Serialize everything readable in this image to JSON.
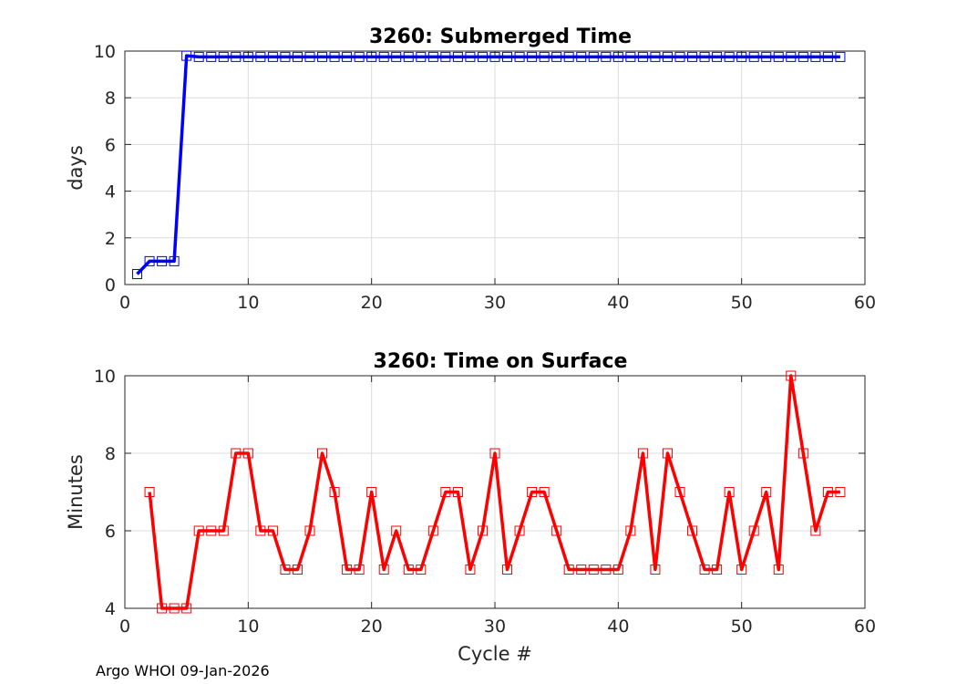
{
  "footer": "Argo WHOI 09-Jan-2026",
  "colors": {
    "top": "#0000ff",
    "bottom": "#ff0000"
  },
  "chart_data": [
    {
      "type": "line",
      "title": "3260: Submerged Time",
      "xlabel": "",
      "ylabel": "days",
      "xlim": [
        0,
        60
      ],
      "ylim": [
        0,
        10
      ],
      "xticks": [
        0,
        10,
        20,
        30,
        40,
        50,
        60
      ],
      "yticks": [
        0,
        2,
        4,
        6,
        8,
        10
      ],
      "grid": true,
      "marker": "square",
      "series": [
        {
          "name": "Submerged Time",
          "color": "#0000ff",
          "x": [
            1,
            2,
            3,
            4,
            5,
            6,
            7,
            8,
            9,
            10,
            11,
            12,
            13,
            14,
            15,
            16,
            17,
            18,
            19,
            20,
            21,
            22,
            23,
            24,
            25,
            26,
            27,
            28,
            29,
            30,
            31,
            32,
            33,
            34,
            35,
            36,
            37,
            38,
            39,
            40,
            41,
            42,
            43,
            44,
            45,
            46,
            47,
            48,
            49,
            50,
            51,
            52,
            53,
            54,
            55,
            56,
            57,
            58
          ],
          "y": [
            0.45,
            1.0,
            1.0,
            1.0,
            9.8,
            9.75,
            9.75,
            9.75,
            9.75,
            9.75,
            9.75,
            9.75,
            9.75,
            9.75,
            9.75,
            9.75,
            9.75,
            9.75,
            9.75,
            9.75,
            9.75,
            9.75,
            9.75,
            9.75,
            9.75,
            9.75,
            9.75,
            9.75,
            9.75,
            9.75,
            9.75,
            9.75,
            9.75,
            9.75,
            9.75,
            9.75,
            9.75,
            9.75,
            9.75,
            9.75,
            9.75,
            9.75,
            9.75,
            9.75,
            9.75,
            9.75,
            9.75,
            9.75,
            9.75,
            9.75,
            9.75,
            9.75,
            9.75,
            9.75,
            9.75,
            9.75,
            9.75,
            9.75
          ]
        }
      ]
    },
    {
      "type": "line",
      "title": "3260: Time on Surface",
      "xlabel": "Cycle #",
      "ylabel": "Minutes",
      "xlim": [
        0,
        60
      ],
      "ylim": [
        4,
        10
      ],
      "xticks": [
        0,
        10,
        20,
        30,
        40,
        50,
        60
      ],
      "yticks": [
        4,
        6,
        8,
        10
      ],
      "grid": true,
      "marker": "square",
      "series": [
        {
          "name": "Time on Surface",
          "color": "#ff0000",
          "x": [
            2,
            3,
            4,
            5,
            6,
            7,
            8,
            9,
            10,
            11,
            12,
            13,
            14,
            15,
            16,
            17,
            18,
            19,
            20,
            21,
            22,
            23,
            24,
            25,
            26,
            27,
            28,
            29,
            30,
            31,
            32,
            33,
            34,
            35,
            36,
            37,
            38,
            39,
            40,
            41,
            42,
            43,
            44,
            45,
            46,
            47,
            48,
            49,
            50,
            51,
            52,
            53,
            54,
            55,
            56,
            57,
            58
          ],
          "y": [
            7,
            4,
            4,
            4,
            6,
            6,
            6,
            8,
            8,
            6,
            6,
            5,
            5,
            6,
            8,
            7,
            5,
            5,
            7,
            5,
            6,
            5,
            5,
            6,
            7,
            7,
            5,
            6,
            8,
            5,
            6,
            7,
            7,
            6,
            5,
            5,
            5,
            5,
            5,
            6,
            8,
            5,
            8,
            7,
            6,
            5,
            5,
            7,
            5,
            6,
            7,
            5,
            10,
            8,
            6,
            7,
            7
          ]
        }
      ]
    }
  ]
}
